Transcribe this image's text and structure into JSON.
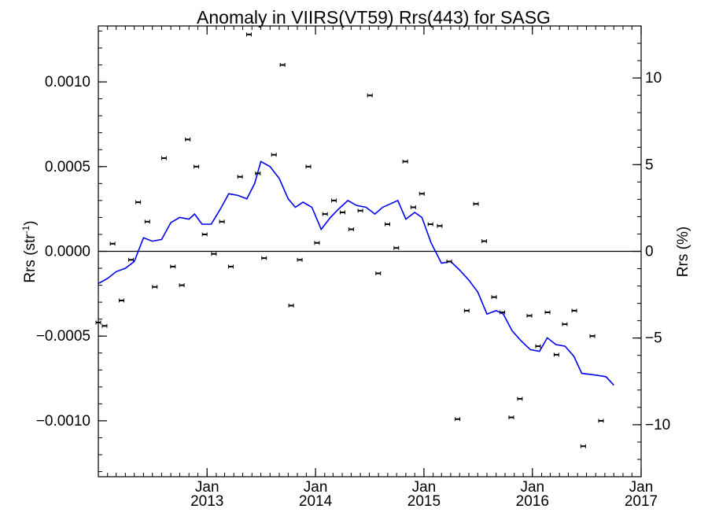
{
  "chart_data": {
    "type": "scatter",
    "title": "Anomaly in VIIRS(VT59) Rrs(443) for SASG",
    "ylabel_left": "Rrs (str",
    "ylabel_left_sup": "-1",
    "ylabel_left_close": ")",
    "ylabel_right": "Rrs (%)",
    "xlim": [
      "2012-01-01",
      "2017-01-01"
    ],
    "ylim_left": [
      -0.00133,
      0.00133
    ],
    "ylim_right": [
      -13,
      13
    ],
    "x_ticks": [
      {
        "date": "2013-01-01",
        "month": "Jan",
        "year": "2013"
      },
      {
        "date": "2014-01-01",
        "month": "Jan",
        "year": "2014"
      },
      {
        "date": "2015-01-01",
        "month": "Jan",
        "year": "2015"
      },
      {
        "date": "2016-01-01",
        "month": "Jan",
        "year": "2016"
      },
      {
        "date": "2017-01-01",
        "month": "Jan",
        "year": "2017"
      }
    ],
    "y_ticks_left": [
      {
        "value": 0.001,
        "label": "0.0010"
      },
      {
        "value": 0.0005,
        "label": "0.0005"
      },
      {
        "value": 0.0,
        "label": "0.0000"
      },
      {
        "value": -0.0005,
        "label": "−0.0005"
      },
      {
        "value": -0.001,
        "label": "−0.0010"
      }
    ],
    "y_ticks_right": [
      {
        "value": 10,
        "label": "10"
      },
      {
        "value": 5,
        "label": "5"
      },
      {
        "value": 0,
        "label": "0"
      },
      {
        "value": -5,
        "label": "−5"
      },
      {
        "value": -10,
        "label": "−10"
      }
    ],
    "zero_line": 0.0,
    "colors": {
      "points": "#000000",
      "trend": "#0000ee",
      "axes": "#000000"
    },
    "points": [
      {
        "x": "2012-01-01",
        "y": -0.00042
      },
      {
        "x": "2012-01-22",
        "y": -0.00044
      },
      {
        "x": "2012-02-18",
        "y": 4.5e-05
      },
      {
        "x": "2012-03-19",
        "y": -0.00029
      },
      {
        "x": "2012-04-20",
        "y": -5e-05
      },
      {
        "x": "2012-05-14",
        "y": 0.00029
      },
      {
        "x": "2012-06-14",
        "y": 0.000175
      },
      {
        "x": "2012-07-09",
        "y": -0.00021
      },
      {
        "x": "2012-08-09",
        "y": 0.00055
      },
      {
        "x": "2012-09-08",
        "y": -9e-05
      },
      {
        "x": "2012-10-08",
        "y": -0.0002
      },
      {
        "x": "2012-10-28",
        "y": 0.00066
      },
      {
        "x": "2012-11-26",
        "y": 0.0005
      },
      {
        "x": "2012-12-24",
        "y": 0.0001
      },
      {
        "x": "2013-01-24",
        "y": -1.5e-05
      },
      {
        "x": "2013-02-20",
        "y": 0.000175
      },
      {
        "x": "2013-03-22",
        "y": -9e-05
      },
      {
        "x": "2013-04-22",
        "y": 0.00044
      },
      {
        "x": "2013-05-22",
        "y": 0.00128
      },
      {
        "x": "2013-06-21",
        "y": 0.00046
      },
      {
        "x": "2013-07-12",
        "y": -4e-05
      },
      {
        "x": "2013-08-14",
        "y": 0.00057
      },
      {
        "x": "2013-09-12",
        "y": 0.0011
      },
      {
        "x": "2013-10-11",
        "y": -0.00032
      },
      {
        "x": "2013-11-09",
        "y": -5e-05
      },
      {
        "x": "2013-12-08",
        "y": 0.0005
      },
      {
        "x": "2014-01-06",
        "y": 5e-05
      },
      {
        "x": "2014-02-02",
        "y": 0.00022
      },
      {
        "x": "2014-03-04",
        "y": 0.0003
      },
      {
        "x": "2014-04-02",
        "y": 0.00023
      },
      {
        "x": "2014-05-01",
        "y": 0.00013
      },
      {
        "x": "2014-06-01",
        "y": 0.00024
      },
      {
        "x": "2014-07-03",
        "y": 0.00092
      },
      {
        "x": "2014-07-31",
        "y": -0.00013
      },
      {
        "x": "2014-08-31",
        "y": 0.00016
      },
      {
        "x": "2014-09-30",
        "y": 2e-05
      },
      {
        "x": "2014-10-30",
        "y": 0.00053
      },
      {
        "x": "2014-11-26",
        "y": 0.00026
      },
      {
        "x": "2014-12-25",
        "y": 0.00034
      },
      {
        "x": "2015-01-23",
        "y": 0.00016
      },
      {
        "x": "2015-02-23",
        "y": 0.00015
      },
      {
        "x": "2015-03-27",
        "y": -6e-05
      },
      {
        "x": "2015-04-24",
        "y": -0.00099
      },
      {
        "x": "2015-05-25",
        "y": -0.00035
      },
      {
        "x": "2015-06-25",
        "y": 0.00028
      },
      {
        "x": "2015-07-23",
        "y": 6e-05
      },
      {
        "x": "2015-08-25",
        "y": -0.00027
      },
      {
        "x": "2015-09-22",
        "y": -0.00036
      },
      {
        "x": "2015-10-22",
        "y": -0.00098
      },
      {
        "x": "2015-11-20",
        "y": -0.00087
      },
      {
        "x": "2015-12-22",
        "y": -0.00038
      },
      {
        "x": "2016-01-20",
        "y": -0.00056
      },
      {
        "x": "2016-02-21",
        "y": -0.00036
      },
      {
        "x": "2016-03-22",
        "y": -0.00061
      },
      {
        "x": "2016-04-19",
        "y": -0.00043
      },
      {
        "x": "2016-05-21",
        "y": -0.00035
      },
      {
        "x": "2016-06-20",
        "y": -0.00115
      },
      {
        "x": "2016-07-21",
        "y": -0.0005
      },
      {
        "x": "2016-08-19",
        "y": -0.001
      }
    ],
    "trend": [
      {
        "x": "2012-01-01",
        "y": -0.00019
      },
      {
        "x": "2012-02-01",
        "y": -0.00016
      },
      {
        "x": "2012-03-01",
        "y": -0.00012
      },
      {
        "x": "2012-04-01",
        "y": -0.0001
      },
      {
        "x": "2012-05-01",
        "y": -6e-05
      },
      {
        "x": "2012-06-01",
        "y": 8e-05
      },
      {
        "x": "2012-07-01",
        "y": 6e-05
      },
      {
        "x": "2012-08-01",
        "y": 7e-05
      },
      {
        "x": "2012-09-01",
        "y": 0.00017
      },
      {
        "x": "2012-10-01",
        "y": 0.0002
      },
      {
        "x": "2012-11-01",
        "y": 0.00019
      },
      {
        "x": "2012-11-20",
        "y": 0.00022
      },
      {
        "x": "2012-12-15",
        "y": 0.00016
      },
      {
        "x": "2013-01-15",
        "y": 0.00016
      },
      {
        "x": "2013-02-15",
        "y": 0.00025
      },
      {
        "x": "2013-03-15",
        "y": 0.00034
      },
      {
        "x": "2013-04-15",
        "y": 0.00033
      },
      {
        "x": "2013-05-15",
        "y": 0.00031
      },
      {
        "x": "2013-06-10",
        "y": 0.0004
      },
      {
        "x": "2013-07-01",
        "y": 0.00053
      },
      {
        "x": "2013-08-01",
        "y": 0.0005
      },
      {
        "x": "2013-09-01",
        "y": 0.00043
      },
      {
        "x": "2013-10-01",
        "y": 0.00031
      },
      {
        "x": "2013-10-25",
        "y": 0.00026
      },
      {
        "x": "2013-11-20",
        "y": 0.00029
      },
      {
        "x": "2013-12-20",
        "y": 0.00026
      },
      {
        "x": "2014-01-20",
        "y": 0.00013
      },
      {
        "x": "2014-02-20",
        "y": 0.0002
      },
      {
        "x": "2014-03-20",
        "y": 0.00025
      },
      {
        "x": "2014-04-20",
        "y": 0.0003
      },
      {
        "x": "2014-05-20",
        "y": 0.00027
      },
      {
        "x": "2014-06-20",
        "y": 0.00026
      },
      {
        "x": "2014-07-20",
        "y": 0.00022
      },
      {
        "x": "2014-08-15",
        "y": 0.00026
      },
      {
        "x": "2014-09-10",
        "y": 0.00028
      },
      {
        "x": "2014-10-05",
        "y": 0.0003
      },
      {
        "x": "2014-11-01",
        "y": 0.00019
      },
      {
        "x": "2014-12-01",
        "y": 0.00023
      },
      {
        "x": "2014-12-25",
        "y": 0.0002
      },
      {
        "x": "2015-01-25",
        "y": 5e-05
      },
      {
        "x": "2015-03-01",
        "y": -7e-05
      },
      {
        "x": "2015-04-01",
        "y": -6e-05
      },
      {
        "x": "2015-05-01",
        "y": -0.00011
      },
      {
        "x": "2015-06-01",
        "y": -0.00017
      },
      {
        "x": "2015-07-01",
        "y": -0.00024
      },
      {
        "x": "2015-08-01",
        "y": -0.00037
      },
      {
        "x": "2015-09-01",
        "y": -0.00035
      },
      {
        "x": "2015-09-25",
        "y": -0.00037
      },
      {
        "x": "2015-10-25",
        "y": -0.00047
      },
      {
        "x": "2015-11-25",
        "y": -0.00053
      },
      {
        "x": "2015-12-25",
        "y": -0.00058
      },
      {
        "x": "2016-01-25",
        "y": -0.00059
      },
      {
        "x": "2016-02-20",
        "y": -0.00051
      },
      {
        "x": "2016-03-20",
        "y": -0.00055
      },
      {
        "x": "2016-04-20",
        "y": -0.00056
      },
      {
        "x": "2016-05-20",
        "y": -0.00062
      },
      {
        "x": "2016-06-15",
        "y": -0.00072
      },
      {
        "x": "2016-08-01",
        "y": -0.00073
      },
      {
        "x": "2016-09-05",
        "y": -0.00074
      },
      {
        "x": "2016-10-01",
        "y": -0.00079
      }
    ]
  }
}
